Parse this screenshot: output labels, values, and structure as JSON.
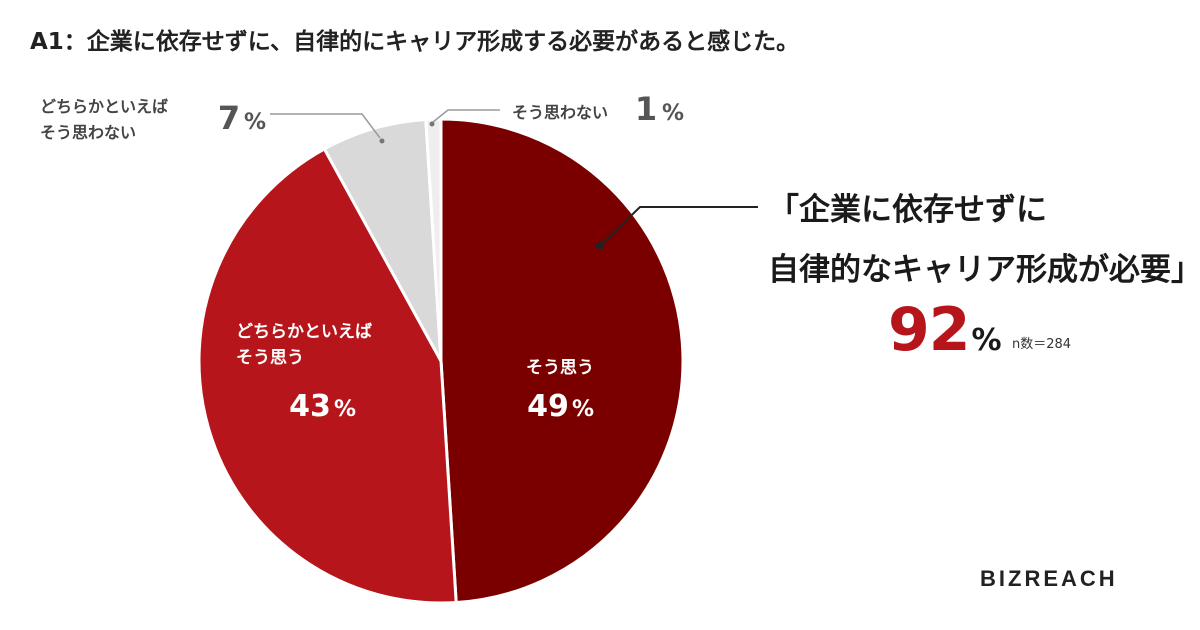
{
  "title": "A1：企業に依存せずに、自律的にキャリア形成する必要があると感じた。",
  "callout": {
    "line1": "「企業に依存せずに",
    "line2": "自律的なキャリア形成が必要」",
    "value": "92",
    "unit": "%"
  },
  "sample_label": "n数＝284",
  "logo": "BIZREACH",
  "chart_data": {
    "type": "pie",
    "title": "A1：企業に依存せずに、自律的にキャリア形成する必要があると感じた。",
    "slices": [
      {
        "label": "そう思う",
        "value": 49,
        "display": "49",
        "color": "#7a0000"
      },
      {
        "label": "どちらかといえば そう思う",
        "value": 43,
        "display": "43",
        "color": "#b5151b"
      },
      {
        "label": "どちらかといえば そう思わない",
        "value": 7,
        "display": "7",
        "color": "#d9d9d9"
      },
      {
        "label": "そう思わない",
        "value": 1,
        "display": "1",
        "color": "#eeeeee"
      }
    ],
    "unit": "%",
    "start_angle": "12 o'clock",
    "direction": "clockwise"
  }
}
